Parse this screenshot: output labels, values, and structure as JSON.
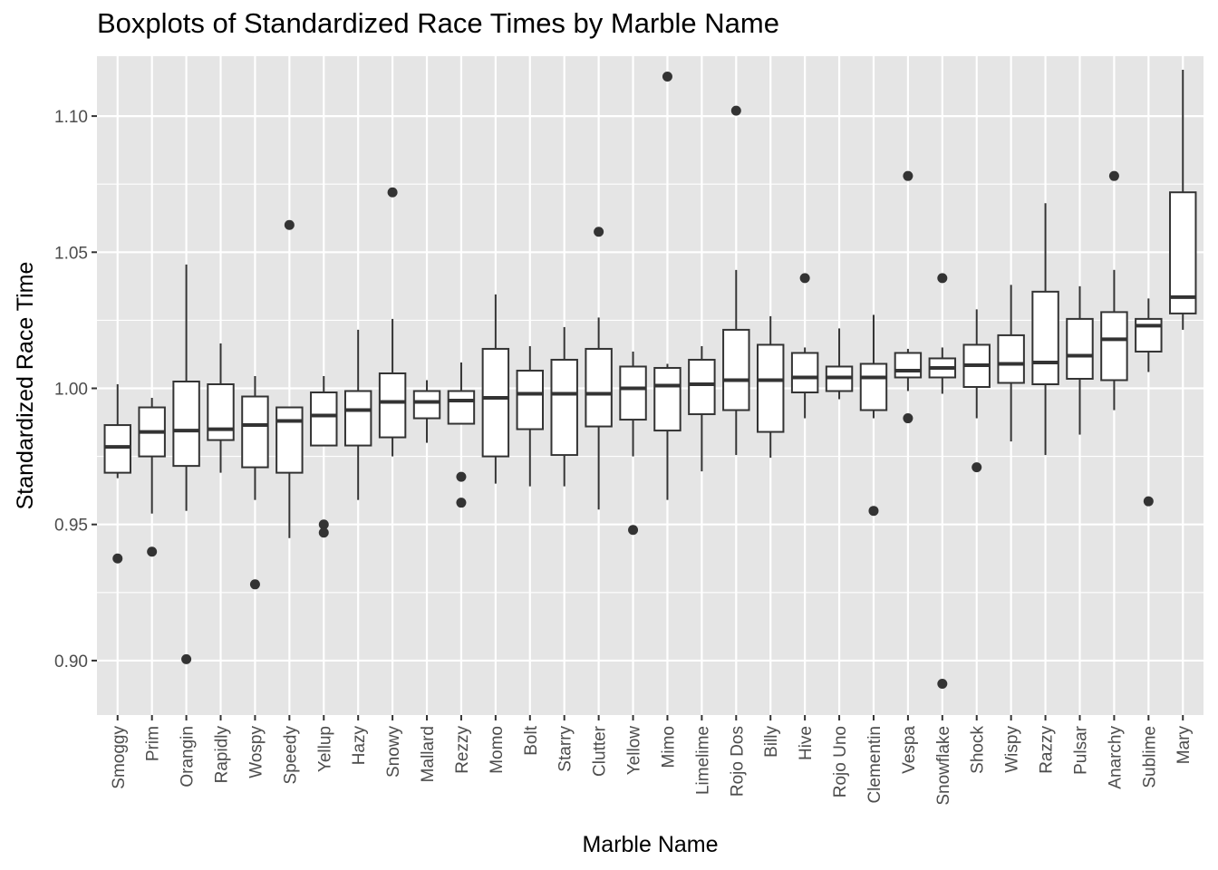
{
  "chart_data": {
    "type": "boxplot",
    "title": "Boxplots of Standardized Race Times by Marble Name",
    "xlabel": "Marble Name",
    "ylabel": "Standardized Race Time",
    "ylim": [
      0.88,
      1.122
    ],
    "yticks": [
      0.9,
      0.95,
      1.0,
      1.05,
      1.1
    ],
    "ytick_labels": [
      "0.90",
      "0.95",
      "1.00",
      "1.05",
      "1.10"
    ],
    "grid": true,
    "categories": [
      "Smoggy",
      "Prim",
      "Orangin",
      "Rapidly",
      "Wospy",
      "Speedy",
      "Yellup",
      "Hazy",
      "Snowy",
      "Mallard",
      "Rezzy",
      "Momo",
      "Bolt",
      "Starry",
      "Clutter",
      "Yellow",
      "Mimo",
      "Limelime",
      "Rojo Dos",
      "Billy",
      "Hive",
      "Rojo Uno",
      "Clementin",
      "Vespa",
      "Snowflake",
      "Shock",
      "Wispy",
      "Razzy",
      "Pulsar",
      "Anarchy",
      "Sublime",
      "Mary"
    ],
    "boxes": [
      {
        "name": "Smoggy",
        "whisker_low": 0.967,
        "q1": 0.969,
        "median": 0.9785,
        "q3": 0.9865,
        "whisker_high": 1.0015,
        "outliers": [
          0.9375
        ]
      },
      {
        "name": "Prim",
        "whisker_low": 0.954,
        "q1": 0.975,
        "median": 0.984,
        "q3": 0.993,
        "whisker_high": 0.9965,
        "outliers": [
          0.94
        ]
      },
      {
        "name": "Orangin",
        "whisker_low": 0.955,
        "q1": 0.9715,
        "median": 0.9845,
        "q3": 1.0025,
        "whisker_high": 1.0455,
        "outliers": [
          0.9005
        ]
      },
      {
        "name": "Rapidly",
        "whisker_low": 0.969,
        "q1": 0.981,
        "median": 0.985,
        "q3": 1.0015,
        "whisker_high": 1.0165,
        "outliers": []
      },
      {
        "name": "Wospy",
        "whisker_low": 0.959,
        "q1": 0.971,
        "median": 0.9865,
        "q3": 0.997,
        "whisker_high": 1.0045,
        "outliers": [
          0.928
        ]
      },
      {
        "name": "Speedy",
        "whisker_low": 0.945,
        "q1": 0.969,
        "median": 0.988,
        "q3": 0.993,
        "whisker_high": 0.993,
        "outliers": [
          1.06
        ]
      },
      {
        "name": "Yellup",
        "whisker_low": 0.979,
        "q1": 0.979,
        "median": 0.99,
        "q3": 0.9985,
        "whisker_high": 1.0045,
        "outliers": [
          0.95,
          0.947
        ]
      },
      {
        "name": "Hazy",
        "whisker_low": 0.959,
        "q1": 0.979,
        "median": 0.992,
        "q3": 0.999,
        "whisker_high": 1.0215,
        "outliers": []
      },
      {
        "name": "Snowy",
        "whisker_low": 0.975,
        "q1": 0.982,
        "median": 0.995,
        "q3": 1.0055,
        "whisker_high": 1.0255,
        "outliers": [
          1.072
        ]
      },
      {
        "name": "Mallard",
        "whisker_low": 0.98,
        "q1": 0.989,
        "median": 0.995,
        "q3": 0.999,
        "whisker_high": 1.003,
        "outliers": []
      },
      {
        "name": "Rezzy",
        "whisker_low": 0.987,
        "q1": 0.987,
        "median": 0.9955,
        "q3": 0.999,
        "whisker_high": 1.0095,
        "outliers": [
          0.9675,
          0.958
        ]
      },
      {
        "name": "Momo",
        "whisker_low": 0.965,
        "q1": 0.975,
        "median": 0.9965,
        "q3": 1.0145,
        "whisker_high": 1.0345,
        "outliers": []
      },
      {
        "name": "Bolt",
        "whisker_low": 0.964,
        "q1": 0.985,
        "median": 0.998,
        "q3": 1.0065,
        "whisker_high": 1.0155,
        "outliers": []
      },
      {
        "name": "Starry",
        "whisker_low": 0.964,
        "q1": 0.9755,
        "median": 0.998,
        "q3": 1.0105,
        "whisker_high": 1.0225,
        "outliers": []
      },
      {
        "name": "Clutter",
        "whisker_low": 0.9555,
        "q1": 0.986,
        "median": 0.998,
        "q3": 1.0145,
        "whisker_high": 1.026,
        "outliers": [
          1.0575
        ]
      },
      {
        "name": "Yellow",
        "whisker_low": 0.975,
        "q1": 0.9885,
        "median": 1.0,
        "q3": 1.008,
        "whisker_high": 1.0135,
        "outliers": [
          0.948
        ]
      },
      {
        "name": "Mimo",
        "whisker_low": 0.959,
        "q1": 0.9845,
        "median": 1.001,
        "q3": 1.0075,
        "whisker_high": 1.009,
        "outliers": [
          1.1145
        ]
      },
      {
        "name": "Limelime",
        "whisker_low": 0.9695,
        "q1": 0.9905,
        "median": 1.0015,
        "q3": 1.0105,
        "whisker_high": 1.0155,
        "outliers": []
      },
      {
        "name": "Rojo Dos",
        "whisker_low": 0.9755,
        "q1": 0.992,
        "median": 1.003,
        "q3": 1.0215,
        "whisker_high": 1.0435,
        "outliers": [
          1.102
        ]
      },
      {
        "name": "Billy",
        "whisker_low": 0.9745,
        "q1": 0.984,
        "median": 1.003,
        "q3": 1.016,
        "whisker_high": 1.0265,
        "outliers": []
      },
      {
        "name": "Hive",
        "whisker_low": 0.989,
        "q1": 0.9985,
        "median": 1.004,
        "q3": 1.013,
        "whisker_high": 1.015,
        "outliers": [
          1.0405
        ]
      },
      {
        "name": "Rojo Uno",
        "whisker_low": 0.996,
        "q1": 0.999,
        "median": 1.004,
        "q3": 1.008,
        "whisker_high": 1.022,
        "outliers": []
      },
      {
        "name": "Clementin",
        "whisker_low": 0.989,
        "q1": 0.992,
        "median": 1.004,
        "q3": 1.009,
        "whisker_high": 1.027,
        "outliers": [
          0.955
        ]
      },
      {
        "name": "Vespa",
        "whisker_low": 0.999,
        "q1": 1.004,
        "median": 1.0065,
        "q3": 1.013,
        "whisker_high": 1.0145,
        "outliers": [
          1.078,
          0.989
        ]
      },
      {
        "name": "Snowflake",
        "whisker_low": 0.998,
        "q1": 1.004,
        "median": 1.0075,
        "q3": 1.011,
        "whisker_high": 1.015,
        "outliers": [
          1.0405,
          0.8915
        ]
      },
      {
        "name": "Shock",
        "whisker_low": 0.989,
        "q1": 1.0005,
        "median": 1.0085,
        "q3": 1.016,
        "whisker_high": 1.029,
        "outliers": [
          0.971
        ]
      },
      {
        "name": "Wispy",
        "whisker_low": 0.9805,
        "q1": 1.002,
        "median": 1.009,
        "q3": 1.0195,
        "whisker_high": 1.038,
        "outliers": []
      },
      {
        "name": "Razzy",
        "whisker_low": 0.9755,
        "q1": 1.0015,
        "median": 1.0095,
        "q3": 1.0355,
        "whisker_high": 1.068,
        "outliers": []
      },
      {
        "name": "Pulsar",
        "whisker_low": 0.983,
        "q1": 1.0035,
        "median": 1.012,
        "q3": 1.0255,
        "whisker_high": 1.0375,
        "outliers": []
      },
      {
        "name": "Anarchy",
        "whisker_low": 0.992,
        "q1": 1.003,
        "median": 1.018,
        "q3": 1.028,
        "whisker_high": 1.0435,
        "outliers": [
          1.078
        ]
      },
      {
        "name": "Sublime",
        "whisker_low": 1.006,
        "q1": 1.0135,
        "median": 1.023,
        "q3": 1.0255,
        "whisker_high": 1.033,
        "outliers": [
          0.9585
        ]
      },
      {
        "name": "Mary",
        "whisker_low": 1.0215,
        "q1": 1.0275,
        "median": 1.0335,
        "q3": 1.072,
        "whisker_high": 1.117,
        "outliers": []
      }
    ]
  },
  "colors": {
    "panel_background": "#e5e5e5",
    "grid": "#ffffff",
    "box_fill": "#ffffff",
    "box_stroke": "#333333",
    "outlier": "#333333",
    "tick_text": "#4d4d4d"
  }
}
